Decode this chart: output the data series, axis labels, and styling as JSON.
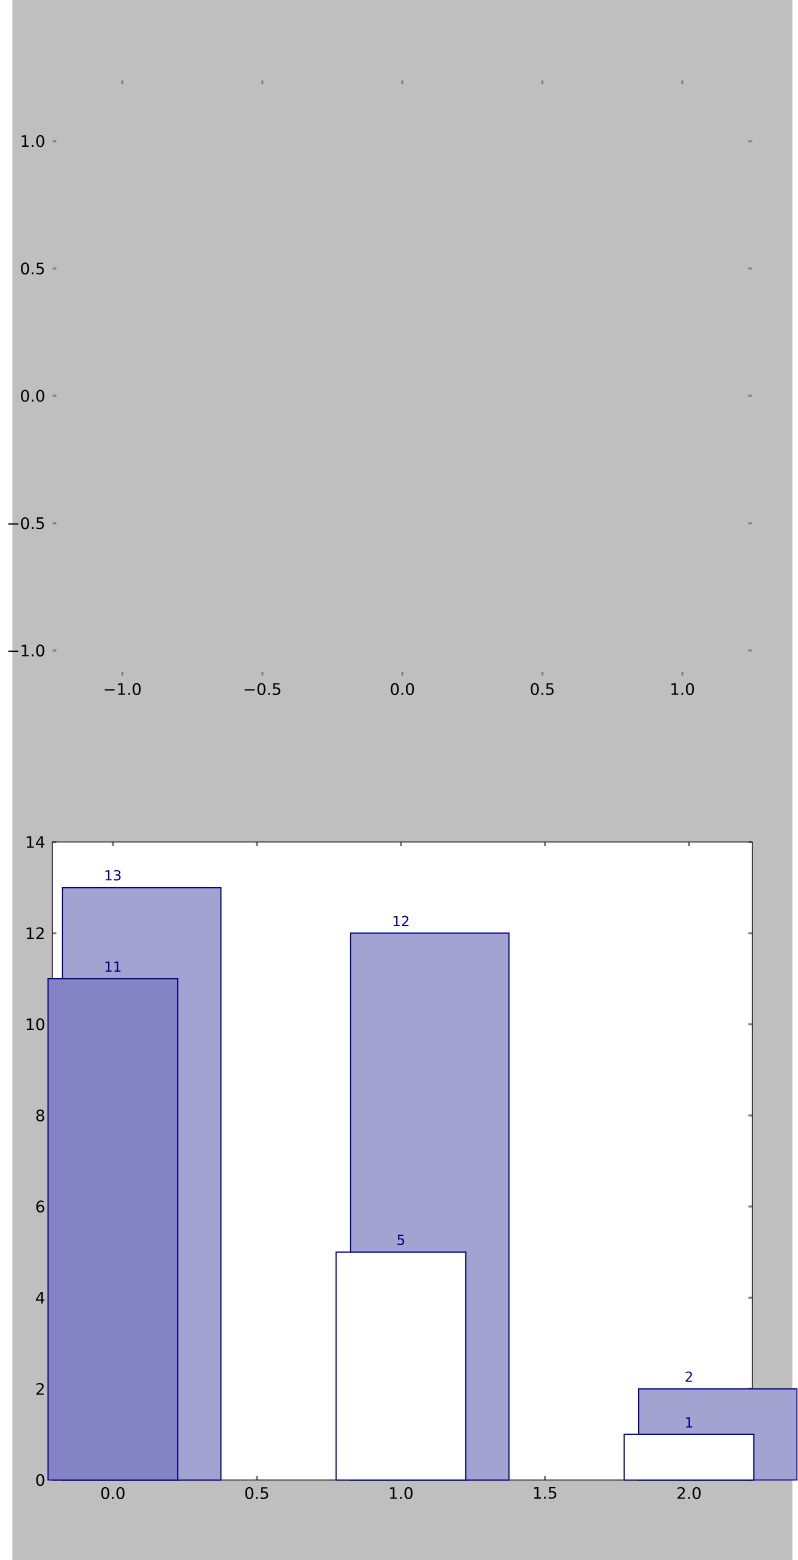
{
  "chart_data": [
    {
      "type": "scatter",
      "xlim": [
        -1.25,
        1.25
      ],
      "ylim": [
        -1.1,
        1.24
      ],
      "xticks": [
        {
          "value": -1,
          "label": "−1.0"
        },
        {
          "value": -0.5,
          "label": "−0.5"
        },
        {
          "value": 0,
          "label": "0.0"
        },
        {
          "value": 0.5,
          "label": "0.5"
        },
        {
          "value": 1,
          "label": "1.0"
        }
      ],
      "yticks": [
        {
          "value": -1,
          "label": "−1.0"
        },
        {
          "value": -0.5,
          "label": "−0.5"
        },
        {
          "value": 0,
          "label": "0.0"
        },
        {
          "value": 0.5,
          "label": "0.5"
        },
        {
          "value": 1,
          "label": "1.0"
        }
      ]
    },
    {
      "type": "bar",
      "xlim": [
        -0.21,
        2.22
      ],
      "ylim": [
        0,
        14
      ],
      "x": [
        0,
        1,
        2
      ],
      "xticks": [
        {
          "value": 0,
          "label": "0.0"
        },
        {
          "value": 0.5,
          "label": "0.5"
        },
        {
          "value": 1,
          "label": "1.0"
        },
        {
          "value": 1.5,
          "label": "1.5"
        },
        {
          "value": 2,
          "label": "2.0"
        }
      ],
      "yticks": [
        0,
        2,
        4,
        6,
        8,
        10,
        12,
        14
      ],
      "series": [
        {
          "colors": [
            "#8484c4",
            "#ffffff",
            "#ffffff"
          ],
          "values": [
            11,
            5,
            1
          ]
        },
        {
          "color": "#a3a3d1",
          "values": [
            13,
            12,
            2
          ]
        }
      ],
      "data_labels": true
    }
  ]
}
